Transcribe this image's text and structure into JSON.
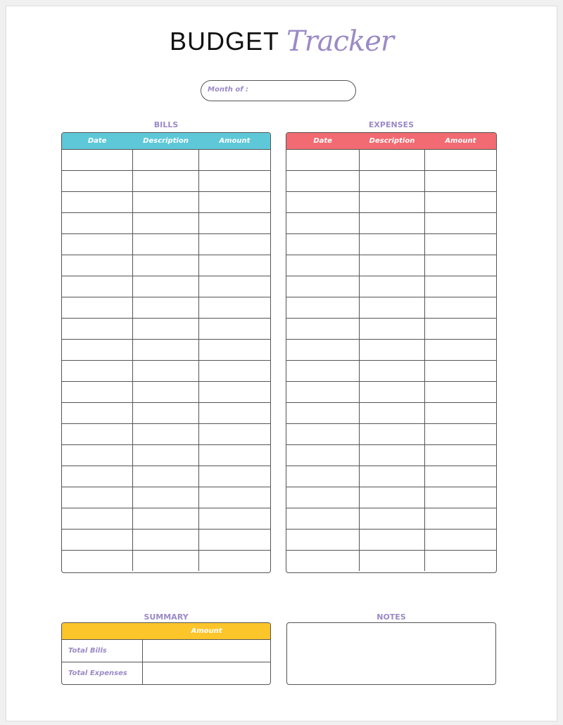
{
  "title": {
    "main": "BUDGET",
    "script": "Tracker"
  },
  "month": {
    "label": "Month of :"
  },
  "bills": {
    "title": "BILLS",
    "color": "#5ec8d8",
    "columns": [
      "Date",
      "Description",
      "Amount"
    ]
  },
  "expenses": {
    "title": "EXPENSES",
    "color": "#f26b72",
    "columns": [
      "Date",
      "Description",
      "Amount"
    ]
  },
  "summary": {
    "title": "SUMMARY",
    "color": "#fcc52a",
    "column": "Amount",
    "rows": [
      "Total Bills",
      "Total Expenses"
    ]
  },
  "notes": {
    "title": "NOTES"
  }
}
